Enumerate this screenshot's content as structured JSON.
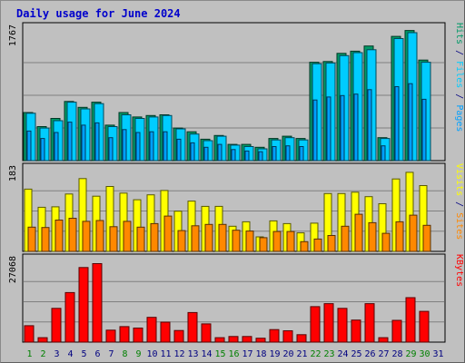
{
  "title": "Daily usage for June 2024",
  "colors": {
    "background": "#c0c0c0",
    "hits": "#009966",
    "files": "#00ccff",
    "pages": "#00a0ff",
    "visits": "#ffff00",
    "sites": "#ff8800",
    "kbytes": "#ff0000",
    "weekday_label": "#000080",
    "weekend_label": "#008000"
  },
  "chart_data": [
    {
      "type": "bar",
      "name": "hits-files-pages",
      "ymax_label": "1767",
      "ylim": [
        0,
        1767
      ],
      "right_label_parts": [
        {
          "text": "Pages",
          "color": "#00a0ff"
        },
        {
          "text": " / ",
          "color": "#000080"
        },
        {
          "text": "Files",
          "color": "#00ccff"
        },
        {
          "text": " / ",
          "color": "#000080"
        },
        {
          "text": "Hits",
          "color": "#009966"
        }
      ],
      "categories": [
        "1",
        "2",
        "3",
        "4",
        "5",
        "6",
        "7",
        "8",
        "9",
        "10",
        "11",
        "12",
        "13",
        "14",
        "15",
        "16",
        "17",
        "18",
        "19",
        "20",
        "21",
        "22",
        "23",
        "24",
        "25",
        "26",
        "27",
        "28",
        "29",
        "30",
        "31"
      ],
      "series": [
        {
          "key": "hits",
          "values": [
            650,
            460,
            570,
            800,
            720,
            790,
            480,
            650,
            590,
            610,
            620,
            440,
            390,
            290,
            340,
            220,
            220,
            180,
            300,
            330,
            300,
            1330,
            1340,
            1450,
            1480,
            1550,
            310,
            1680,
            1760,
            1360,
            0
          ]
        },
        {
          "key": "files",
          "values": [
            640,
            440,
            540,
            790,
            700,
            770,
            460,
            620,
            570,
            590,
            610,
            430,
            360,
            270,
            330,
            210,
            190,
            160,
            280,
            310,
            280,
            1310,
            1320,
            1420,
            1460,
            1500,
            300,
            1650,
            1730,
            1330,
            0
          ]
        },
        {
          "key": "pages",
          "values": [
            400,
            300,
            380,
            520,
            480,
            510,
            310,
            420,
            380,
            390,
            390,
            290,
            240,
            180,
            220,
            150,
            130,
            120,
            190,
            200,
            190,
            820,
            860,
            880,
            900,
            960,
            200,
            1000,
            1040,
            830,
            0
          ]
        }
      ]
    },
    {
      "type": "bar",
      "name": "visits-sites",
      "ymax_label": "183",
      "ylim": [
        0,
        183
      ],
      "right_label_parts": [
        {
          "text": "Sites",
          "color": "#ff8800"
        },
        {
          "text": " / ",
          "color": "#000080"
        },
        {
          "text": "Visits",
          "color": "#ffff00"
        }
      ],
      "categories": [
        "1",
        "2",
        "3",
        "4",
        "5",
        "6",
        "7",
        "8",
        "9",
        "10",
        "11",
        "12",
        "13",
        "14",
        "15",
        "16",
        "17",
        "18",
        "19",
        "20",
        "21",
        "22",
        "23",
        "24",
        "25",
        "26",
        "27",
        "28",
        "29",
        "30",
        "31"
      ],
      "series": [
        {
          "key": "visits",
          "values": [
            141,
            100,
            101,
            130,
            165,
            125,
            147,
            132,
            117,
            128,
            138,
            91,
            114,
            102,
            102,
            57,
            67,
            33,
            69,
            63,
            42,
            64,
            131,
            131,
            134,
            124,
            108,
            164,
            179,
            149,
            0
          ]
        },
        {
          "key": "sites",
          "values": [
            55,
            54,
            71,
            75,
            68,
            70,
            56,
            68,
            55,
            63,
            80,
            47,
            58,
            61,
            61,
            48,
            46,
            31,
            45,
            45,
            22,
            28,
            36,
            57,
            84,
            65,
            41,
            67,
            82,
            59,
            0
          ]
        }
      ]
    },
    {
      "type": "bar",
      "name": "kbytes",
      "ymax_label": "27068",
      "ylim": [
        0,
        27068
      ],
      "right_label_parts": [
        {
          "text": "KBytes",
          "color": "#ff0000"
        }
      ],
      "categories": [
        "1",
        "2",
        "3",
        "4",
        "5",
        "6",
        "7",
        "8",
        "9",
        "10",
        "11",
        "12",
        "13",
        "14",
        "15",
        "16",
        "17",
        "18",
        "19",
        "20",
        "21",
        "22",
        "23",
        "24",
        "25",
        "26",
        "27",
        "28",
        "29",
        "30",
        "31"
      ],
      "series": [
        {
          "key": "kbytes",
          "values": [
            5500,
            1500,
            11300,
            16600,
            25000,
            26300,
            4000,
            5200,
            4700,
            8300,
            6700,
            3900,
            9900,
            6100,
            1500,
            1900,
            1900,
            1300,
            4200,
            3800,
            2500,
            11900,
            12900,
            11300,
            7400,
            12900,
            1500,
            7300,
            14900,
            10300,
            0
          ]
        }
      ]
    }
  ],
  "x_labels": {
    "days": [
      "1",
      "2",
      "3",
      "4",
      "5",
      "6",
      "7",
      "8",
      "9",
      "10",
      "11",
      "12",
      "13",
      "14",
      "15",
      "16",
      "17",
      "18",
      "19",
      "20",
      "21",
      "22",
      "23",
      "24",
      "25",
      "26",
      "27",
      "28",
      "29",
      "30",
      "31"
    ],
    "weekend_days": [
      "1",
      "2",
      "8",
      "9",
      "15",
      "16",
      "22",
      "23",
      "29",
      "30"
    ]
  }
}
